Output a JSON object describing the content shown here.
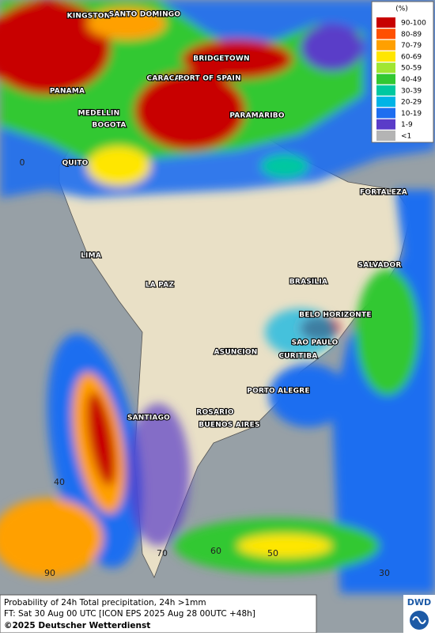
{
  "legend": {
    "title": "(%)",
    "items": [
      {
        "label": "90-100",
        "color": "#c80000"
      },
      {
        "label": "80-89",
        "color": "#ff5000"
      },
      {
        "label": "70-79",
        "color": "#ffa000"
      },
      {
        "label": "60-69",
        "color": "#ffe600"
      },
      {
        "label": "50-59",
        "color": "#a0e632"
      },
      {
        "label": "40-49",
        "color": "#32c832"
      },
      {
        "label": "30-39",
        "color": "#00c8a0"
      },
      {
        "label": "20-29",
        "color": "#00b4e6"
      },
      {
        "label": "10-19",
        "color": "#1e6ef0"
      },
      {
        "label": "1-9",
        "color": "#5a3cc8"
      },
      {
        "label": "<1",
        "color": "#b4b4b4"
      }
    ]
  },
  "cities": [
    "KINGSTON",
    "SANTO DOMINGO",
    "BRIDGETOWN",
    "PANAMA",
    "CARACAS",
    "PORT OF SPAIN",
    "MEDELLIN",
    "BOGOTA",
    "PARAMARIBO",
    "QUITO",
    "FORTALEZA",
    "LIMA",
    "SALVADOR",
    "LA PAZ",
    "BRASILIA",
    "BELO HORIZONTE",
    "SAO PAULO",
    "ASUNCION",
    "CURITIBA",
    "PORTO ALEGRE",
    "SANTIAGO",
    "ROSARIO",
    "BUENOS AIRES"
  ],
  "grid_labels": [
    "0",
    "40",
    "90",
    "70",
    "60",
    "50",
    "30"
  ],
  "footer": {
    "line1": "Probability of 24h Total precipitation, 24h >1mm",
    "line2": "FT: Sat 30 Aug 00 UTC [ICON EPS 2025 Aug 28 00UTC +48h]",
    "copyright": "©2025 Deutscher Wetterdienst"
  },
  "logo": "DWD"
}
